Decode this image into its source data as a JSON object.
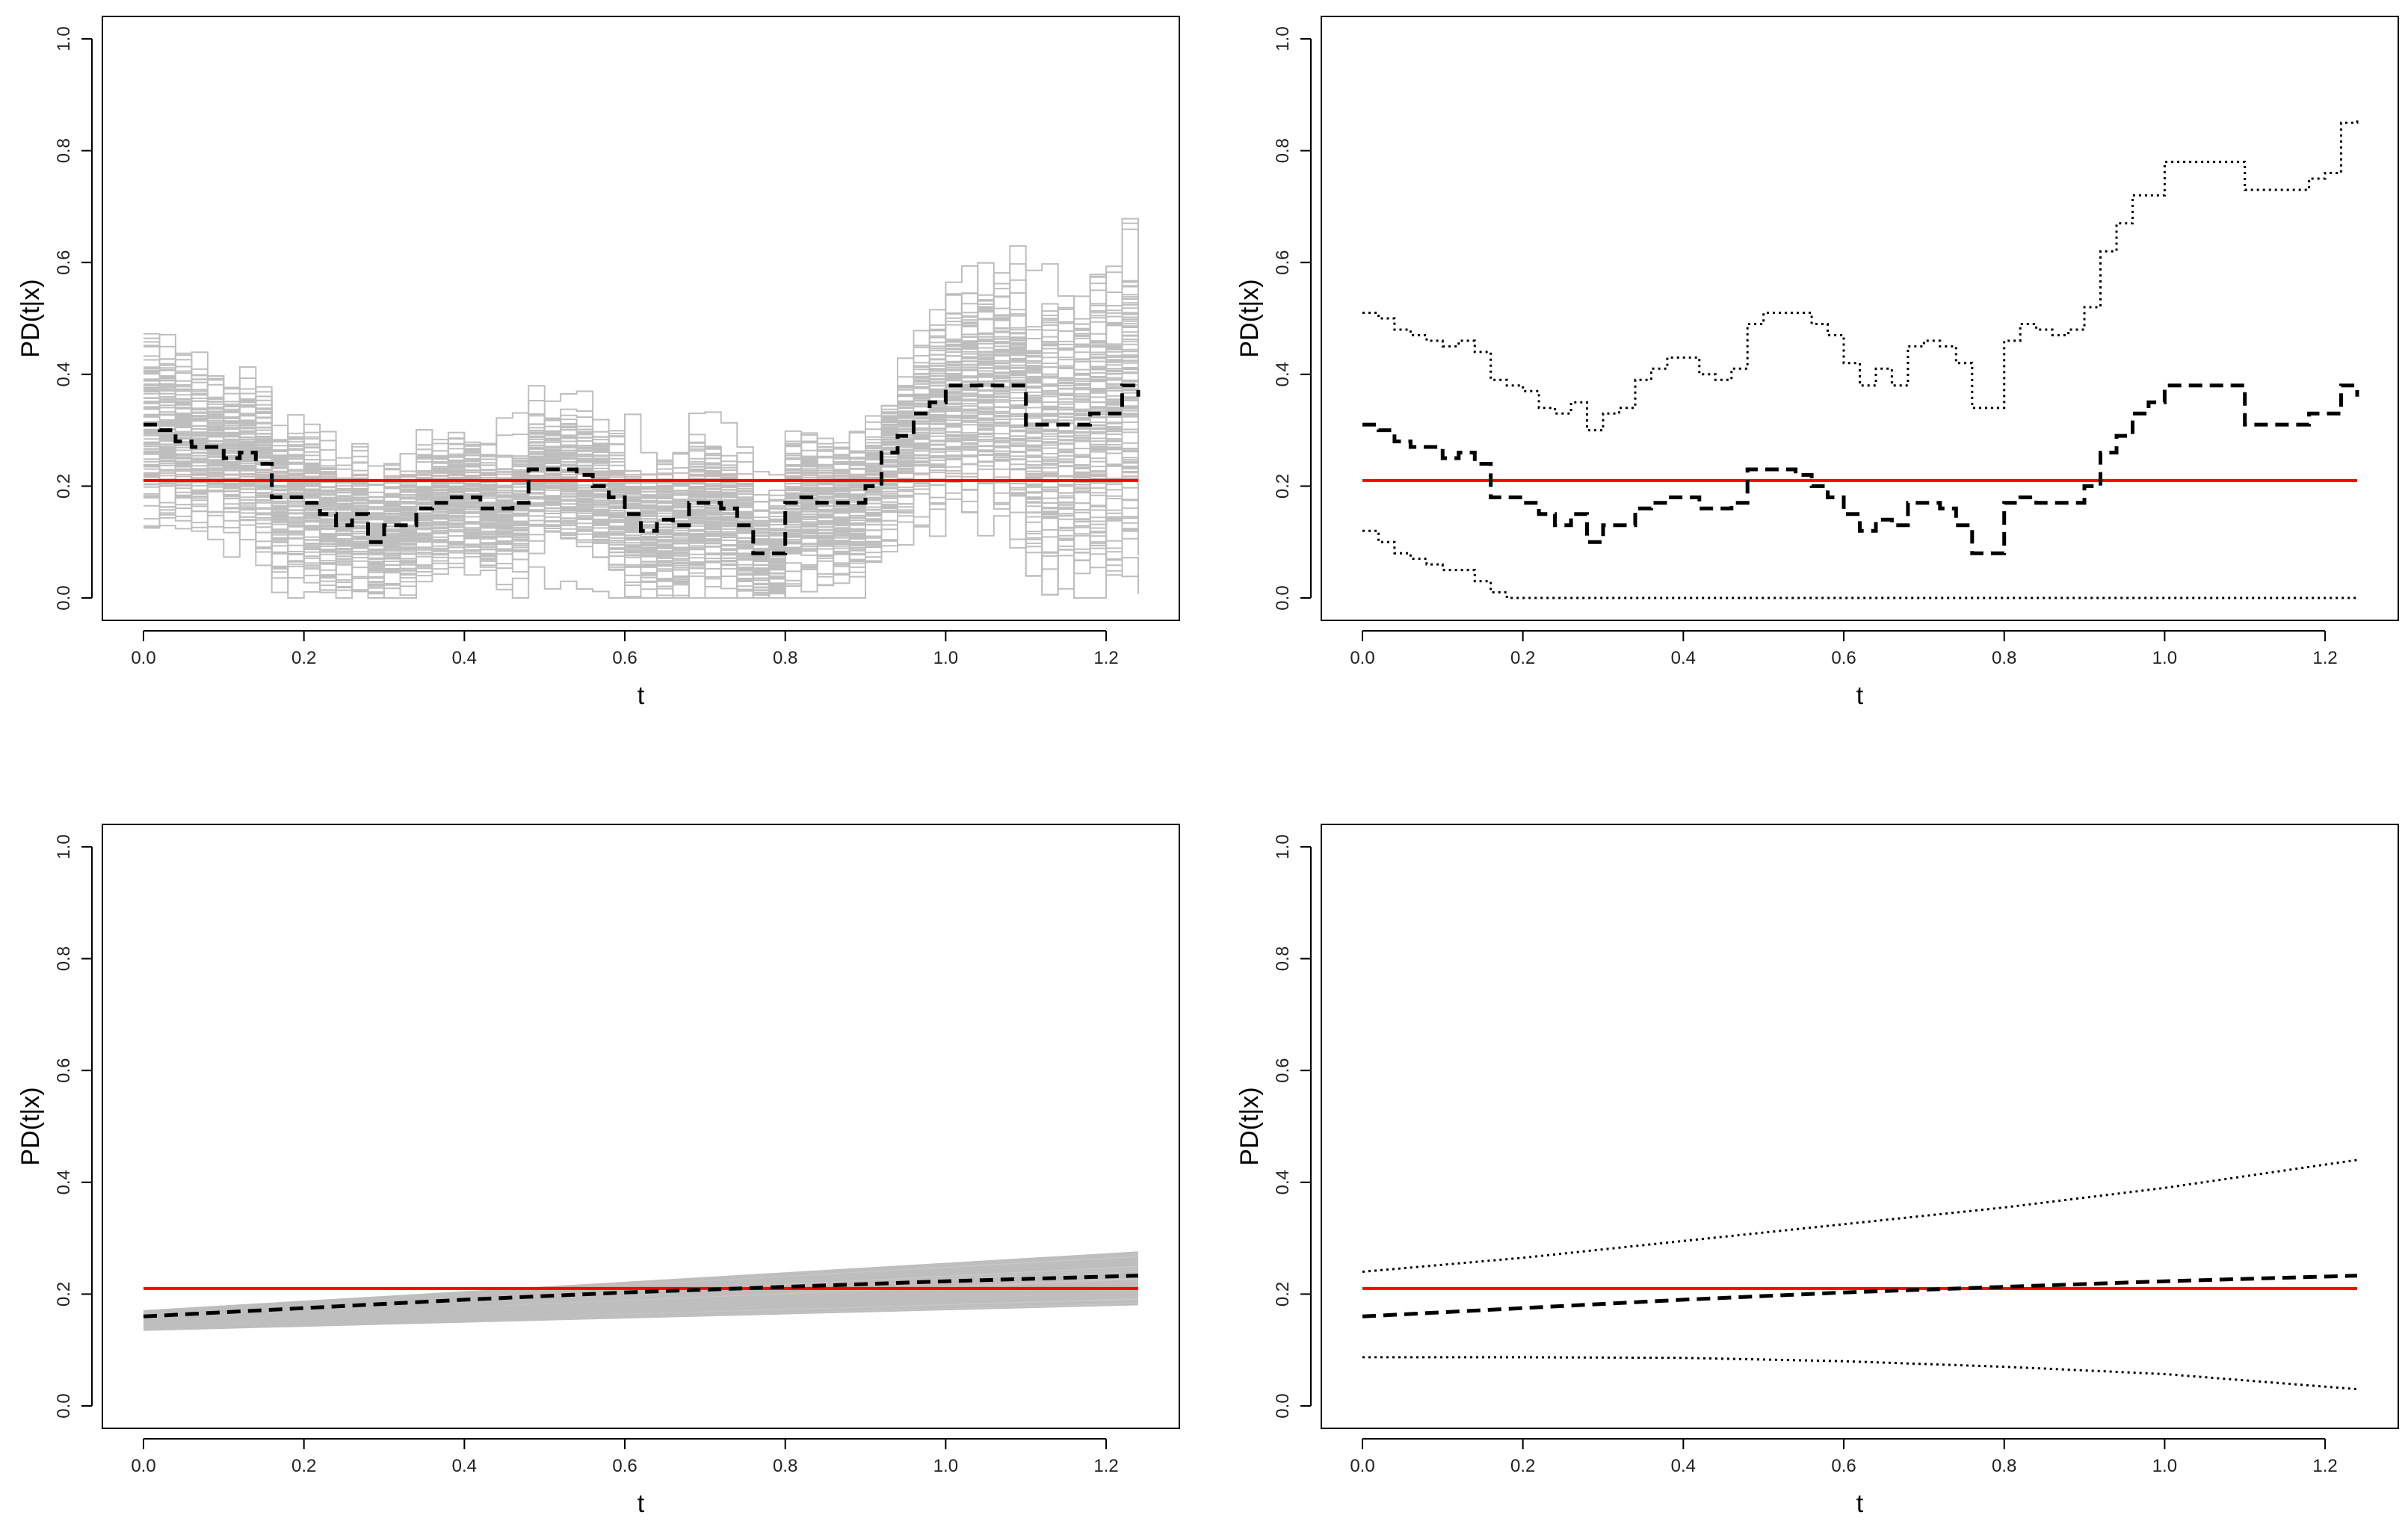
{
  "colors": {
    "reference": "#ff0000",
    "estimate": "#000000",
    "band": "#000000",
    "simulations": "#bebebe",
    "frame": "#000000"
  },
  "chart_data": [
    {
      "panel": "top-left",
      "type": "line",
      "title": "",
      "xlabel": "t",
      "ylabel": "PD(t|x)",
      "xlim": [
        0.0,
        1.24
      ],
      "ylim": [
        0.0,
        1.0
      ],
      "xticks": [
        "0.0",
        "0.2",
        "0.4",
        "0.6",
        "0.8",
        "1.0",
        "1.2"
      ],
      "yticks": [
        "0.0",
        "0.2",
        "0.4",
        "0.6",
        "0.8",
        "1.0"
      ],
      "reference_value": 0.21,
      "estimate": {
        "x": [
          0,
          0.02,
          0.04,
          0.06,
          0.08,
          0.1,
          0.12,
          0.14,
          0.16,
          0.18,
          0.2,
          0.22,
          0.24,
          0.26,
          0.28,
          0.3,
          0.32,
          0.34,
          0.36,
          0.38,
          0.4,
          0.42,
          0.44,
          0.46,
          0.48,
          0.5,
          0.52,
          0.54,
          0.56,
          0.58,
          0.6,
          0.62,
          0.64,
          0.66,
          0.68,
          0.7,
          0.72,
          0.74,
          0.76,
          0.78,
          0.8,
          0.82,
          0.84,
          0.86,
          0.88,
          0.9,
          0.92,
          0.94,
          0.96,
          0.98,
          1.0,
          1.02,
          1.04,
          1.06,
          1.08,
          1.1,
          1.12,
          1.14,
          1.16,
          1.18,
          1.2,
          1.22,
          1.24
        ],
        "y": [
          0.31,
          0.3,
          0.28,
          0.27,
          0.27,
          0.25,
          0.26,
          0.24,
          0.18,
          0.18,
          0.17,
          0.15,
          0.13,
          0.15,
          0.1,
          0.13,
          0.13,
          0.16,
          0.17,
          0.18,
          0.18,
          0.16,
          0.16,
          0.17,
          0.23,
          0.23,
          0.23,
          0.22,
          0.2,
          0.18,
          0.15,
          0.12,
          0.14,
          0.13,
          0.17,
          0.17,
          0.16,
          0.13,
          0.08,
          0.08,
          0.17,
          0.18,
          0.17,
          0.17,
          0.17,
          0.2,
          0.26,
          0.29,
          0.33,
          0.35,
          0.38,
          0.38,
          0.38,
          0.38,
          0.38,
          0.31,
          0.31,
          0.31,
          0.31,
          0.33,
          0.33,
          0.38,
          0.36
        ]
      },
      "simulations": {
        "count": 200,
        "spread": 0.09,
        "style": "gray-fan"
      }
    },
    {
      "panel": "top-right",
      "type": "line",
      "title": "",
      "xlabel": "t",
      "ylabel": "PD(t|x)",
      "xlim": [
        0.0,
        1.24
      ],
      "ylim": [
        0.0,
        1.0
      ],
      "xticks": [
        "0.0",
        "0.2",
        "0.4",
        "0.6",
        "0.8",
        "1.0",
        "1.2"
      ],
      "yticks": [
        "0.0",
        "0.2",
        "0.4",
        "0.6",
        "0.8",
        "1.0"
      ],
      "reference_value": 0.21,
      "estimate": {
        "x": [
          0,
          0.02,
          0.04,
          0.06,
          0.08,
          0.1,
          0.12,
          0.14,
          0.16,
          0.18,
          0.2,
          0.22,
          0.24,
          0.26,
          0.28,
          0.3,
          0.32,
          0.34,
          0.36,
          0.38,
          0.4,
          0.42,
          0.44,
          0.46,
          0.48,
          0.5,
          0.52,
          0.54,
          0.56,
          0.58,
          0.6,
          0.62,
          0.64,
          0.66,
          0.68,
          0.7,
          0.72,
          0.74,
          0.76,
          0.78,
          0.8,
          0.82,
          0.84,
          0.86,
          0.88,
          0.9,
          0.92,
          0.94,
          0.96,
          0.98,
          1.0,
          1.02,
          1.04,
          1.06,
          1.08,
          1.1,
          1.12,
          1.14,
          1.16,
          1.18,
          1.2,
          1.22,
          1.24
        ],
        "y": [
          0.31,
          0.3,
          0.28,
          0.27,
          0.27,
          0.25,
          0.26,
          0.24,
          0.18,
          0.18,
          0.17,
          0.15,
          0.13,
          0.15,
          0.1,
          0.13,
          0.13,
          0.16,
          0.17,
          0.18,
          0.18,
          0.16,
          0.16,
          0.17,
          0.23,
          0.23,
          0.23,
          0.22,
          0.2,
          0.18,
          0.15,
          0.12,
          0.14,
          0.13,
          0.17,
          0.17,
          0.16,
          0.13,
          0.08,
          0.08,
          0.17,
          0.18,
          0.17,
          0.17,
          0.17,
          0.2,
          0.26,
          0.29,
          0.33,
          0.35,
          0.38,
          0.38,
          0.38,
          0.38,
          0.38,
          0.31,
          0.31,
          0.31,
          0.31,
          0.33,
          0.33,
          0.38,
          0.36
        ]
      },
      "upper": {
        "x": [
          0,
          0.02,
          0.04,
          0.06,
          0.08,
          0.1,
          0.12,
          0.14,
          0.16,
          0.18,
          0.2,
          0.22,
          0.24,
          0.26,
          0.28,
          0.3,
          0.32,
          0.34,
          0.36,
          0.38,
          0.4,
          0.42,
          0.44,
          0.46,
          0.48,
          0.5,
          0.52,
          0.54,
          0.56,
          0.58,
          0.6,
          0.62,
          0.64,
          0.66,
          0.68,
          0.7,
          0.72,
          0.74,
          0.76,
          0.78,
          0.8,
          0.82,
          0.84,
          0.86,
          0.88,
          0.9,
          0.92,
          0.94,
          0.96,
          0.98,
          1.0,
          1.02,
          1.04,
          1.06,
          1.08,
          1.1,
          1.12,
          1.14,
          1.16,
          1.18,
          1.2,
          1.22,
          1.24
        ],
        "y": [
          0.51,
          0.5,
          0.48,
          0.47,
          0.46,
          0.45,
          0.46,
          0.44,
          0.39,
          0.38,
          0.37,
          0.34,
          0.33,
          0.35,
          0.3,
          0.33,
          0.34,
          0.39,
          0.41,
          0.43,
          0.43,
          0.4,
          0.39,
          0.41,
          0.49,
          0.51,
          0.51,
          0.51,
          0.49,
          0.47,
          0.42,
          0.38,
          0.41,
          0.38,
          0.45,
          0.46,
          0.45,
          0.42,
          0.34,
          0.34,
          0.46,
          0.49,
          0.48,
          0.47,
          0.48,
          0.52,
          0.62,
          0.67,
          0.72,
          0.72,
          0.78,
          0.78,
          0.78,
          0.78,
          0.78,
          0.73,
          0.73,
          0.73,
          0.73,
          0.75,
          0.76,
          0.85,
          0.86
        ]
      },
      "lower": {
        "x": [
          0,
          0.02,
          0.04,
          0.06,
          0.08,
          0.1,
          0.12,
          0.14,
          0.16,
          0.18,
          1.24
        ],
        "y": [
          0.12,
          0.1,
          0.08,
          0.07,
          0.06,
          0.05,
          0.05,
          0.03,
          0.01,
          0.0,
          0.0
        ]
      }
    },
    {
      "panel": "bottom-left",
      "type": "line",
      "title": "",
      "xlabel": "t",
      "ylabel": "PD(t|x)",
      "xlim": [
        0.0,
        1.24
      ],
      "ylim": [
        0.0,
        1.0
      ],
      "xticks": [
        "0.0",
        "0.2",
        "0.4",
        "0.6",
        "0.8",
        "1.0",
        "1.2"
      ],
      "yticks": [
        "0.0",
        "0.2",
        "0.4",
        "0.6",
        "0.8",
        "1.0"
      ],
      "reference_value": 0.21,
      "estimate": {
        "x": [
          0,
          0.2,
          0.4,
          0.6,
          0.8,
          1.0,
          1.24
        ],
        "y": [
          0.16,
          0.175,
          0.19,
          0.203,
          0.213,
          0.223,
          0.233
        ]
      },
      "simulations": {
        "count": 200,
        "lower_start": 0.135,
        "upper_start": 0.17,
        "lower_end": 0.18,
        "upper_end": 0.275,
        "style": "gray-band"
      }
    },
    {
      "panel": "bottom-right",
      "type": "line",
      "title": "",
      "xlabel": "t",
      "ylabel": "PD(t|x)",
      "xlim": [
        0.0,
        1.24
      ],
      "ylim": [
        0.0,
        1.0
      ],
      "xticks": [
        "0.0",
        "0.2",
        "0.4",
        "0.6",
        "0.8",
        "1.0",
        "1.2"
      ],
      "yticks": [
        "0.0",
        "0.2",
        "0.4",
        "0.6",
        "0.8",
        "1.0"
      ],
      "reference_value": 0.21,
      "estimate": {
        "x": [
          0,
          0.2,
          0.4,
          0.6,
          0.8,
          1.0,
          1.24
        ],
        "y": [
          0.16,
          0.175,
          0.19,
          0.203,
          0.213,
          0.223,
          0.233
        ]
      },
      "upper": {
        "x": [
          0,
          0.2,
          0.4,
          0.6,
          0.8,
          1.0,
          1.24
        ],
        "y": [
          0.24,
          0.265,
          0.295,
          0.325,
          0.355,
          0.39,
          0.44
        ]
      },
      "lower": {
        "x": [
          0,
          0.2,
          0.4,
          0.6,
          0.8,
          1.0,
          1.24
        ],
        "y": [
          0.087,
          0.087,
          0.086,
          0.08,
          0.07,
          0.057,
          0.03
        ]
      }
    }
  ]
}
